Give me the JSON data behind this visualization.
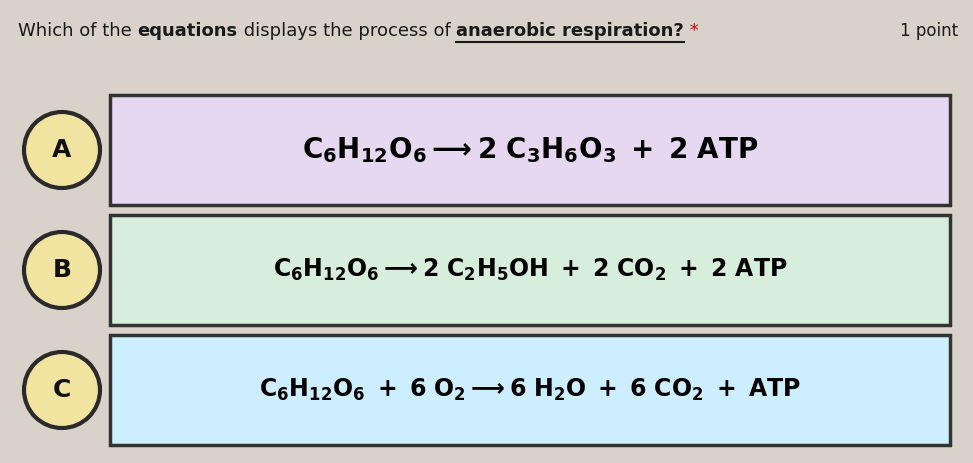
{
  "fig_bg": "#d8d2ca",
  "title_parts": [
    {
      "text": "Which of the ",
      "bold": false,
      "underline": false,
      "color": "#1a1a1a"
    },
    {
      "text": "equations",
      "bold": true,
      "underline": false,
      "color": "#1a1a1a"
    },
    {
      "text": " displays the process of ",
      "bold": false,
      "underline": false,
      "color": "#1a1a1a"
    },
    {
      "text": "anaerobic respiration?",
      "bold": true,
      "underline": true,
      "color": "#1a1a1a"
    },
    {
      "text": " *",
      "bold": false,
      "underline": false,
      "color": "#cc0000"
    }
  ],
  "points_text": "1 point",
  "points_color": "#1a1a1a",
  "label_bg": "#f0e4a0",
  "label_border": "#2a2a2a",
  "options": [
    {
      "label": "A",
      "box_bg": "#e6d8f0",
      "box_border": "#333333",
      "eq_mathtext": "$\\mathbf{C_6H_{12}O_6 \\longrightarrow 2\\ C_3H_6O_3\\ +\\ 2\\ ATP}$",
      "eq_fontsize": 20
    },
    {
      "label": "B",
      "box_bg": "#d8eedd",
      "box_border": "#333333",
      "eq_mathtext": "$\\mathbf{C_6H_{12}O_6 \\longrightarrow 2\\ C_2H_5OH\\ +\\ 2\\ CO_2\\ +\\ 2\\ ATP}$",
      "eq_fontsize": 17
    },
    {
      "label": "C",
      "box_bg": "#cceeff",
      "box_border": "#333333",
      "eq_mathtext": "$\\mathbf{C_6H_{12}O_6\\ +\\ 6\\ O_2 \\longrightarrow 6\\ H_2O\\ +\\ 6\\ CO_2\\ +\\ ATP}$",
      "eq_fontsize": 17
    }
  ],
  "title_fontsize": 13,
  "points_fontsize": 12,
  "label_fontsize": 18
}
